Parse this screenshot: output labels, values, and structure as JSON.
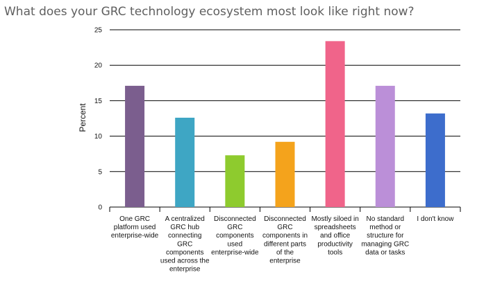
{
  "chart_data": {
    "type": "bar",
    "title": "What does your GRC technology ecosystem most look like right now?",
    "xlabel": "",
    "ylabel": "Percent",
    "ylim": [
      0,
      25
    ],
    "yticks": [
      0,
      5,
      10,
      15,
      20,
      25
    ],
    "grid": true,
    "legend": "none",
    "categories": [
      [
        "One GRC",
        "platform used",
        "enterprise-wide"
      ],
      [
        "A centralized",
        "GRC hub",
        "connecting",
        "GRC",
        "components",
        "used across the",
        "enterprise"
      ],
      [
        "Disconnected",
        "GRC",
        "components",
        "used",
        "enterprise-wide"
      ],
      [
        "Disconnected",
        "GRC",
        "components in",
        "different parts",
        "of the",
        "enterprise"
      ],
      [
        "Mostly siloed in",
        "spreadsheets",
        "and office",
        "productivity",
        "tools"
      ],
      [
        "No standard",
        "method or",
        "structure for",
        "managing GRC",
        "data or tasks"
      ],
      [
        "I don't know"
      ]
    ],
    "values": [
      17.1,
      12.6,
      7.3,
      9.2,
      23.4,
      17.1,
      13.2
    ],
    "colors": [
      "#7b5e8e",
      "#3ea6c4",
      "#8ecb2e",
      "#f4a31c",
      "#f0648a",
      "#bb8fd8",
      "#3d6dcc"
    ]
  }
}
